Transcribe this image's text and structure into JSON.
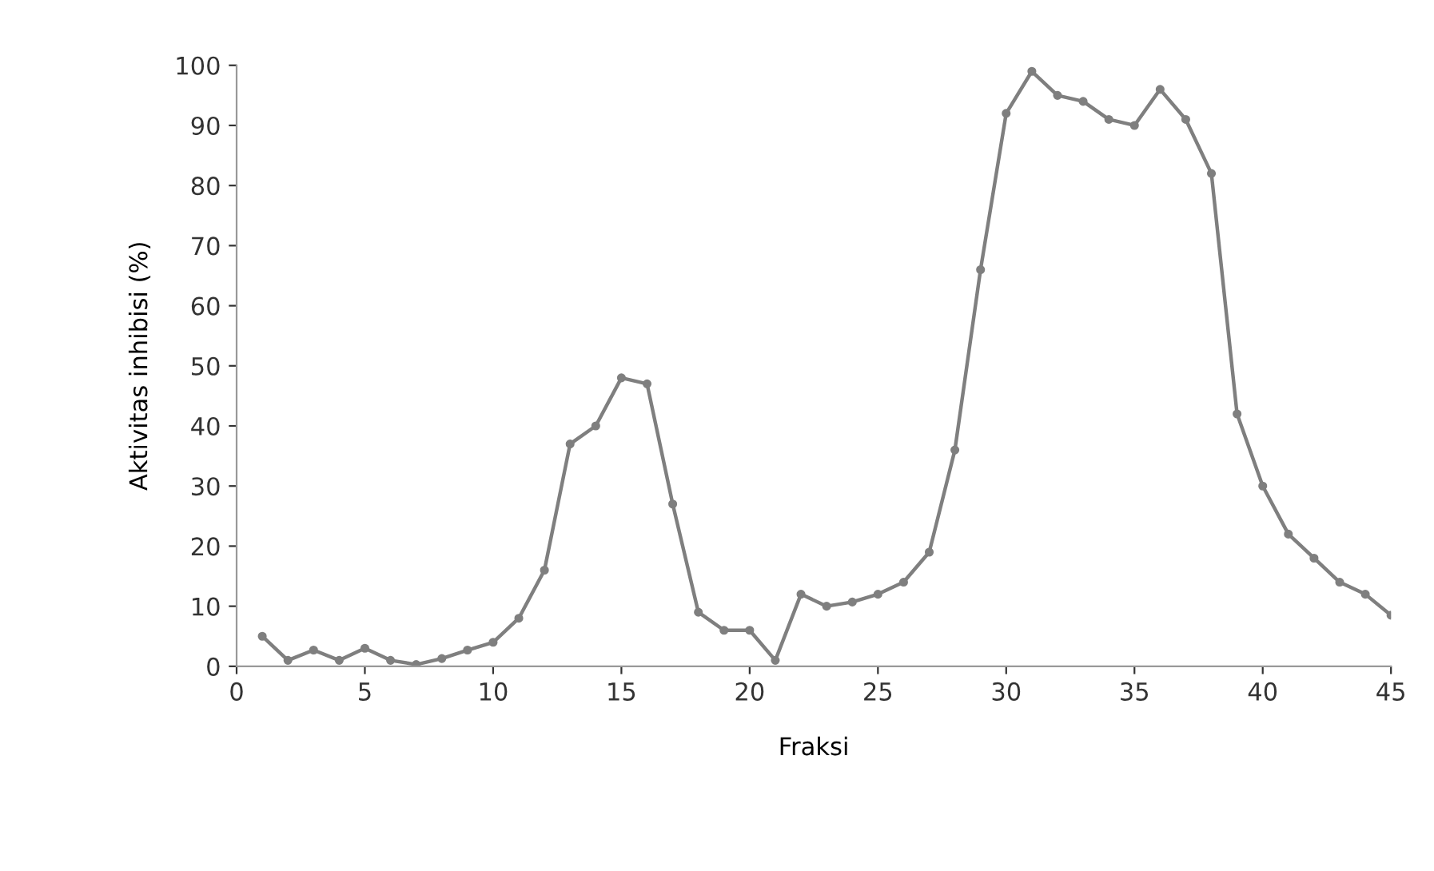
{
  "chart_data": {
    "type": "line",
    "xlabel": "Fraksi",
    "ylabel": "Aktivitas inhibisi (%)",
    "x": [
      1,
      2,
      3,
      4,
      5,
      6,
      7,
      8,
      9,
      10,
      11,
      12,
      13,
      14,
      15,
      16,
      17,
      18,
      19,
      20,
      21,
      22,
      23,
      24,
      25,
      26,
      27,
      28,
      29,
      30,
      31,
      32,
      33,
      34,
      35,
      36,
      37,
      38,
      39,
      40,
      41,
      42,
      43,
      44,
      45
    ],
    "series": [
      {
        "color": "#7f7f7f",
        "values": [
          5,
          1,
          2.7,
          1,
          3,
          1,
          0.3,
          1.3,
          2.7,
          4,
          8,
          16,
          37,
          40,
          48,
          47,
          27,
          9,
          6,
          6,
          1,
          12,
          10,
          10.7,
          12,
          14,
          19,
          36,
          66,
          92,
          99,
          95,
          94,
          91,
          90,
          96,
          91,
          82,
          42,
          30,
          22,
          18,
          14,
          12,
          8.5
        ]
      }
    ],
    "xlim": [
      0,
      45
    ],
    "xticks": [
      0,
      5,
      10,
      15,
      20,
      25,
      30,
      35,
      40,
      45
    ],
    "ylim": [
      0,
      100
    ],
    "yticks": [
      0,
      10,
      20,
      30,
      40,
      50,
      60,
      70,
      80,
      90,
      100
    ],
    "grid": false,
    "legend": false,
    "marker": "circle",
    "line_style": "solid"
  }
}
